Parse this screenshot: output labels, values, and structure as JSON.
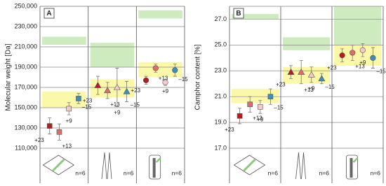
{
  "chart_data": [
    {
      "type": "dot",
      "title": "A",
      "y_label": "Molecular weight [Da]",
      "ylim": [
        110000,
        250000
      ],
      "yticks": [
        {
          "value": 110000,
          "label": "110,000"
        },
        {
          "value": 130000,
          "label": "130,000"
        },
        {
          "value": 150000,
          "label": "150,000"
        },
        {
          "value": 170000,
          "label": "170,000"
        },
        {
          "value": 190000,
          "label": "190,000"
        },
        {
          "value": 210000,
          "label": "210,000"
        },
        {
          "value": 230000,
          "label": "230,000"
        },
        {
          "value": 250000,
          "label": "250,000"
        }
      ],
      "grid": true,
      "markers": [
        "square",
        "triangle",
        "circle"
      ],
      "n_labels": [
        "n=6",
        "n=6",
        "n=6"
      ],
      "green_color": "#c6e8b4",
      "yellow_color": "#fbf79a",
      "green_bands": [
        [
          212000,
          220000
        ],
        [
          190000,
          214000
        ],
        [
          238000,
          246000
        ]
      ],
      "yellow_bands": [
        [
          150000,
          166000
        ],
        [
          160000,
          178000
        ],
        [
          180000,
          195000
        ]
      ],
      "series": [
        {
          "name": "+23",
          "color": "#b01e1e",
          "values": [
            132000,
            172000,
            177000
          ],
          "errors": [
            8000,
            9000,
            4000
          ]
        },
        {
          "name": "+13",
          "color": "#e06b6b",
          "values": [
            126000,
            167000,
            189000
          ],
          "errors": [
            8000,
            8000,
            4000
          ]
        },
        {
          "name": "+9",
          "color": "#f6caca",
          "values": [
            149000,
            170000,
            175000
          ],
          "errors": [
            6000,
            19000,
            3000
          ]
        },
        {
          "name": "–15",
          "color": "#3d8fb8",
          "values": [
            159000,
            166000,
            187000
          ],
          "errors": [
            5000,
            10000,
            6000
          ]
        }
      ]
    },
    {
      "type": "dot",
      "title": "B",
      "y_label": "Camphor content [%]",
      "ylim": [
        17,
        28
      ],
      "yticks": [
        {
          "value": 17,
          "label": "17.0"
        },
        {
          "value": 19,
          "label": "19.0"
        },
        {
          "value": 21,
          "label": "21.0"
        },
        {
          "value": 23,
          "label": "23.0"
        },
        {
          "value": 25,
          "label": "25.0"
        },
        {
          "value": 27,
          "label": "27.0"
        }
      ],
      "grid": true,
      "markers": [
        "square",
        "triangle",
        "circle"
      ],
      "n_labels": [
        "n=6",
        "n=6",
        "n=6"
      ],
      "green_color": "#c6e8b4",
      "yellow_color": "#fbf79a",
      "green_bands": [
        [
          27.0,
          27.4
        ],
        [
          24.6,
          25.6
        ],
        [
          25.0,
          28.0
        ]
      ],
      "yellow_bands": [
        [
          20.5,
          21.6
        ],
        [
          22.0,
          23.3
        ],
        [
          23.4,
          25.0
        ]
      ],
      "series": [
        {
          "name": "+23",
          "color": "#b01e1e",
          "values": [
            19.5,
            22.9,
            24.2
          ],
          "errors": [
            0.6,
            0.5,
            0.5
          ]
        },
        {
          "name": "+13",
          "color": "#e06b6b",
          "values": [
            20.4,
            22.9,
            24.4
          ],
          "errors": [
            0.6,
            0.9,
            0.6
          ]
        },
        {
          "name": "+9",
          "color": "#f6caca",
          "values": [
            20.2,
            22.7,
            24.6
          ],
          "errors": [
            0.5,
            0.6,
            0.5
          ]
        },
        {
          "name": "–15",
          "color": "#3d8fb8",
          "values": [
            21.0,
            22.4,
            24.0
          ],
          "errors": [
            0.6,
            0.4,
            0.8
          ]
        }
      ]
    }
  ]
}
